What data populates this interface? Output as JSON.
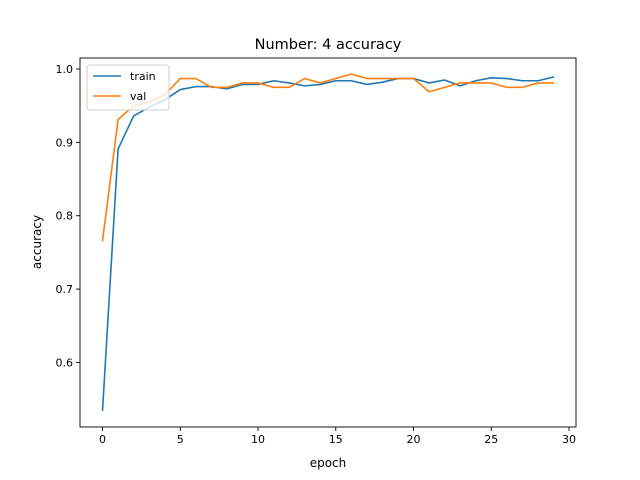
{
  "chart_data": {
    "type": "line",
    "title": "Number: 4 accuracy",
    "xlabel": "epoch",
    "ylabel": "accuracy",
    "xlim": [
      -1.45,
      30.45
    ],
    "ylim": [
      0.512,
      1.015
    ],
    "xticks": [
      0,
      5,
      10,
      15,
      20,
      25,
      30
    ],
    "yticks": [
      0.6,
      0.7,
      0.8,
      0.9,
      1.0
    ],
    "yticklabels": [
      "0.6",
      "0.7",
      "0.8",
      "0.9",
      "1.0"
    ],
    "grid": false,
    "legend": "top-left",
    "x": [
      0,
      1,
      2,
      3,
      4,
      5,
      6,
      7,
      8,
      9,
      10,
      11,
      12,
      13,
      14,
      15,
      16,
      17,
      18,
      19,
      20,
      21,
      22,
      23,
      24,
      25,
      26,
      27,
      28,
      29
    ],
    "series": [
      {
        "name": "train",
        "color": "#1f77b4",
        "values": [
          0.535,
          0.891,
          0.936,
          0.948,
          0.958,
          0.972,
          0.976,
          0.976,
          0.973,
          0.979,
          0.979,
          0.984,
          0.981,
          0.977,
          0.979,
          0.984,
          0.984,
          0.979,
          0.982,
          0.987,
          0.987,
          0.981,
          0.985,
          0.977,
          0.984,
          0.988,
          0.987,
          0.984,
          0.984,
          0.989
        ]
      },
      {
        "name": "val",
        "color": "#ff7f0e",
        "values": [
          0.766,
          0.931,
          0.95,
          0.955,
          0.965,
          0.987,
          0.987,
          0.975,
          0.975,
          0.981,
          0.981,
          0.975,
          0.975,
          0.987,
          0.981,
          0.987,
          0.993,
          0.987,
          0.987,
          0.987,
          0.987,
          0.969,
          0.975,
          0.981,
          0.981,
          0.981,
          0.975,
          0.975,
          0.981,
          0.981
        ]
      }
    ]
  }
}
